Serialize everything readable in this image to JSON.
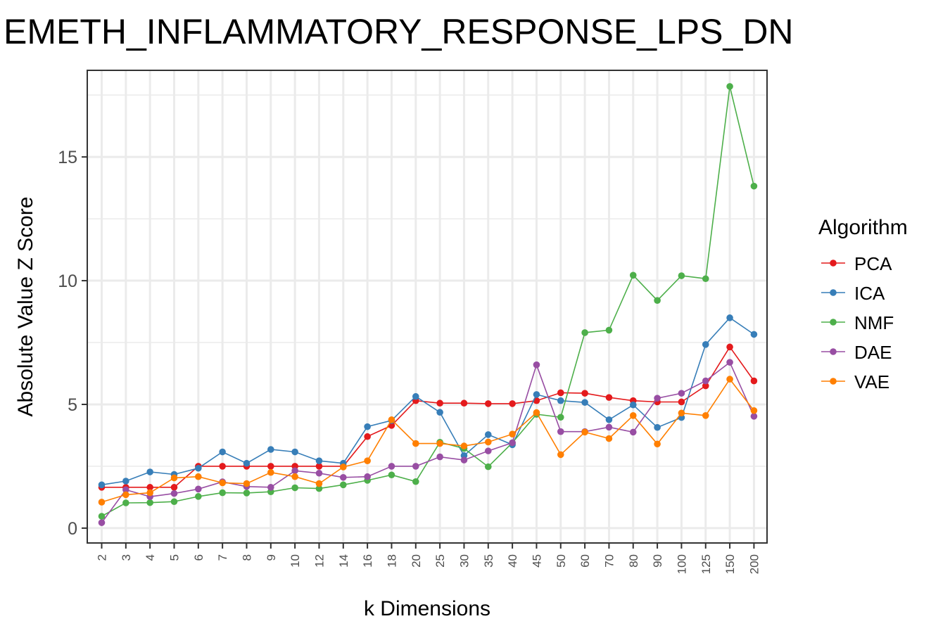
{
  "chart_data": {
    "type": "line",
    "title": "EMETH_INFLAMMATORY_RESPONSE_LPS_DN",
    "xlabel": "k Dimensions",
    "ylabel": "Absolute Value Z Score",
    "ylim": [
      -0.6,
      18.5
    ],
    "yticks": [
      "0",
      "5",
      "10",
      "15"
    ],
    "categories": [
      "2",
      "3",
      "4",
      "5",
      "6",
      "7",
      "8",
      "9",
      "10",
      "12",
      "14",
      "16",
      "18",
      "20",
      "25",
      "30",
      "35",
      "40",
      "45",
      "50",
      "60",
      "70",
      "80",
      "90",
      "100",
      "125",
      "150",
      "200"
    ],
    "grid": true,
    "legend": {
      "title": "Algorithm",
      "placement": "right"
    },
    "series": [
      {
        "name": "PCA",
        "color": "#E41A1C",
        "values": [
          1.65,
          1.65,
          1.65,
          1.65,
          2.5,
          2.5,
          2.5,
          2.5,
          2.5,
          2.5,
          2.5,
          3.7,
          4.15,
          5.15,
          5.05,
          5.05,
          5.03,
          5.03,
          5.15,
          5.47,
          5.45,
          5.28,
          5.15,
          5.1,
          5.1,
          5.75,
          7.32,
          5.95
        ]
      },
      {
        "name": "ICA",
        "color": "#377EB8",
        "values": [
          1.75,
          1.9,
          2.27,
          2.17,
          2.42,
          3.08,
          2.62,
          3.18,
          3.08,
          2.72,
          2.62,
          4.1,
          4.35,
          5.32,
          4.68,
          2.93,
          3.78,
          3.37,
          5.4,
          5.15,
          5.08,
          4.38,
          4.98,
          4.07,
          4.47,
          7.42,
          8.5,
          7.83
        ]
      },
      {
        "name": "NMF",
        "color": "#4DAF4A",
        "values": [
          0.48,
          1.02,
          1.03,
          1.07,
          1.28,
          1.43,
          1.42,
          1.47,
          1.63,
          1.6,
          1.75,
          1.93,
          2.15,
          1.88,
          3.47,
          3.22,
          2.48,
          3.45,
          4.6,
          4.48,
          7.9,
          8.0,
          10.22,
          9.2,
          10.2,
          10.08,
          17.85,
          13.82
        ]
      },
      {
        "name": "DAE",
        "color": "#984EA3",
        "values": [
          0.22,
          1.55,
          1.27,
          1.4,
          1.58,
          1.87,
          1.68,
          1.65,
          2.32,
          2.22,
          2.05,
          2.08,
          2.5,
          2.5,
          2.88,
          2.75,
          3.12,
          3.45,
          6.6,
          3.9,
          3.9,
          4.08,
          3.88,
          5.25,
          5.45,
          5.95,
          6.7,
          4.52
        ]
      },
      {
        "name": "VAE",
        "color": "#FF7F00",
        "values": [
          1.05,
          1.35,
          1.43,
          2.03,
          2.08,
          1.83,
          1.8,
          2.25,
          2.08,
          1.8,
          2.47,
          2.72,
          4.38,
          3.42,
          3.42,
          3.32,
          3.48,
          3.8,
          4.67,
          2.97,
          3.88,
          3.62,
          4.55,
          3.4,
          4.65,
          4.55,
          6.02,
          4.75
        ]
      }
    ]
  }
}
